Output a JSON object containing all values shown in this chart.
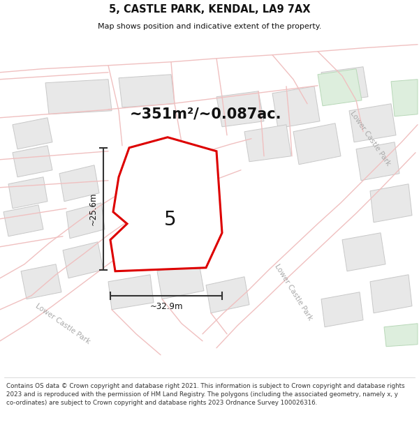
{
  "title": "5, CASTLE PARK, KENDAL, LA9 7AX",
  "subtitle": "Map shows position and indicative extent of the property.",
  "footer": "Contains OS data © Crown copyright and database right 2021. This information is subject to Crown copyright and database rights 2023 and is reproduced with the permission of HM Land Registry. The polygons (including the associated geometry, namely x, y co-ordinates) are subject to Crown copyright and database rights 2023 Ordnance Survey 100026316.",
  "area_label": "~351m²/~0.087ac.",
  "plot_number": "5",
  "dim_width": "~32.9m",
  "dim_height": "~25.6m",
  "bg_color": "#ffffff",
  "building_color": "#e8e8e8",
  "building_edge": "#c8c8c8",
  "green_area": "#ddeedd",
  "plot_fill": "#ffffff",
  "plot_edge": "#dd0000",
  "road_line_color": "#f0c0c0",
  "road_label_color": "#aaaaaa",
  "dim_line_color": "#333333",
  "title_color": "#111111",
  "text_color": "#222222",
  "footer_color": "#333333"
}
